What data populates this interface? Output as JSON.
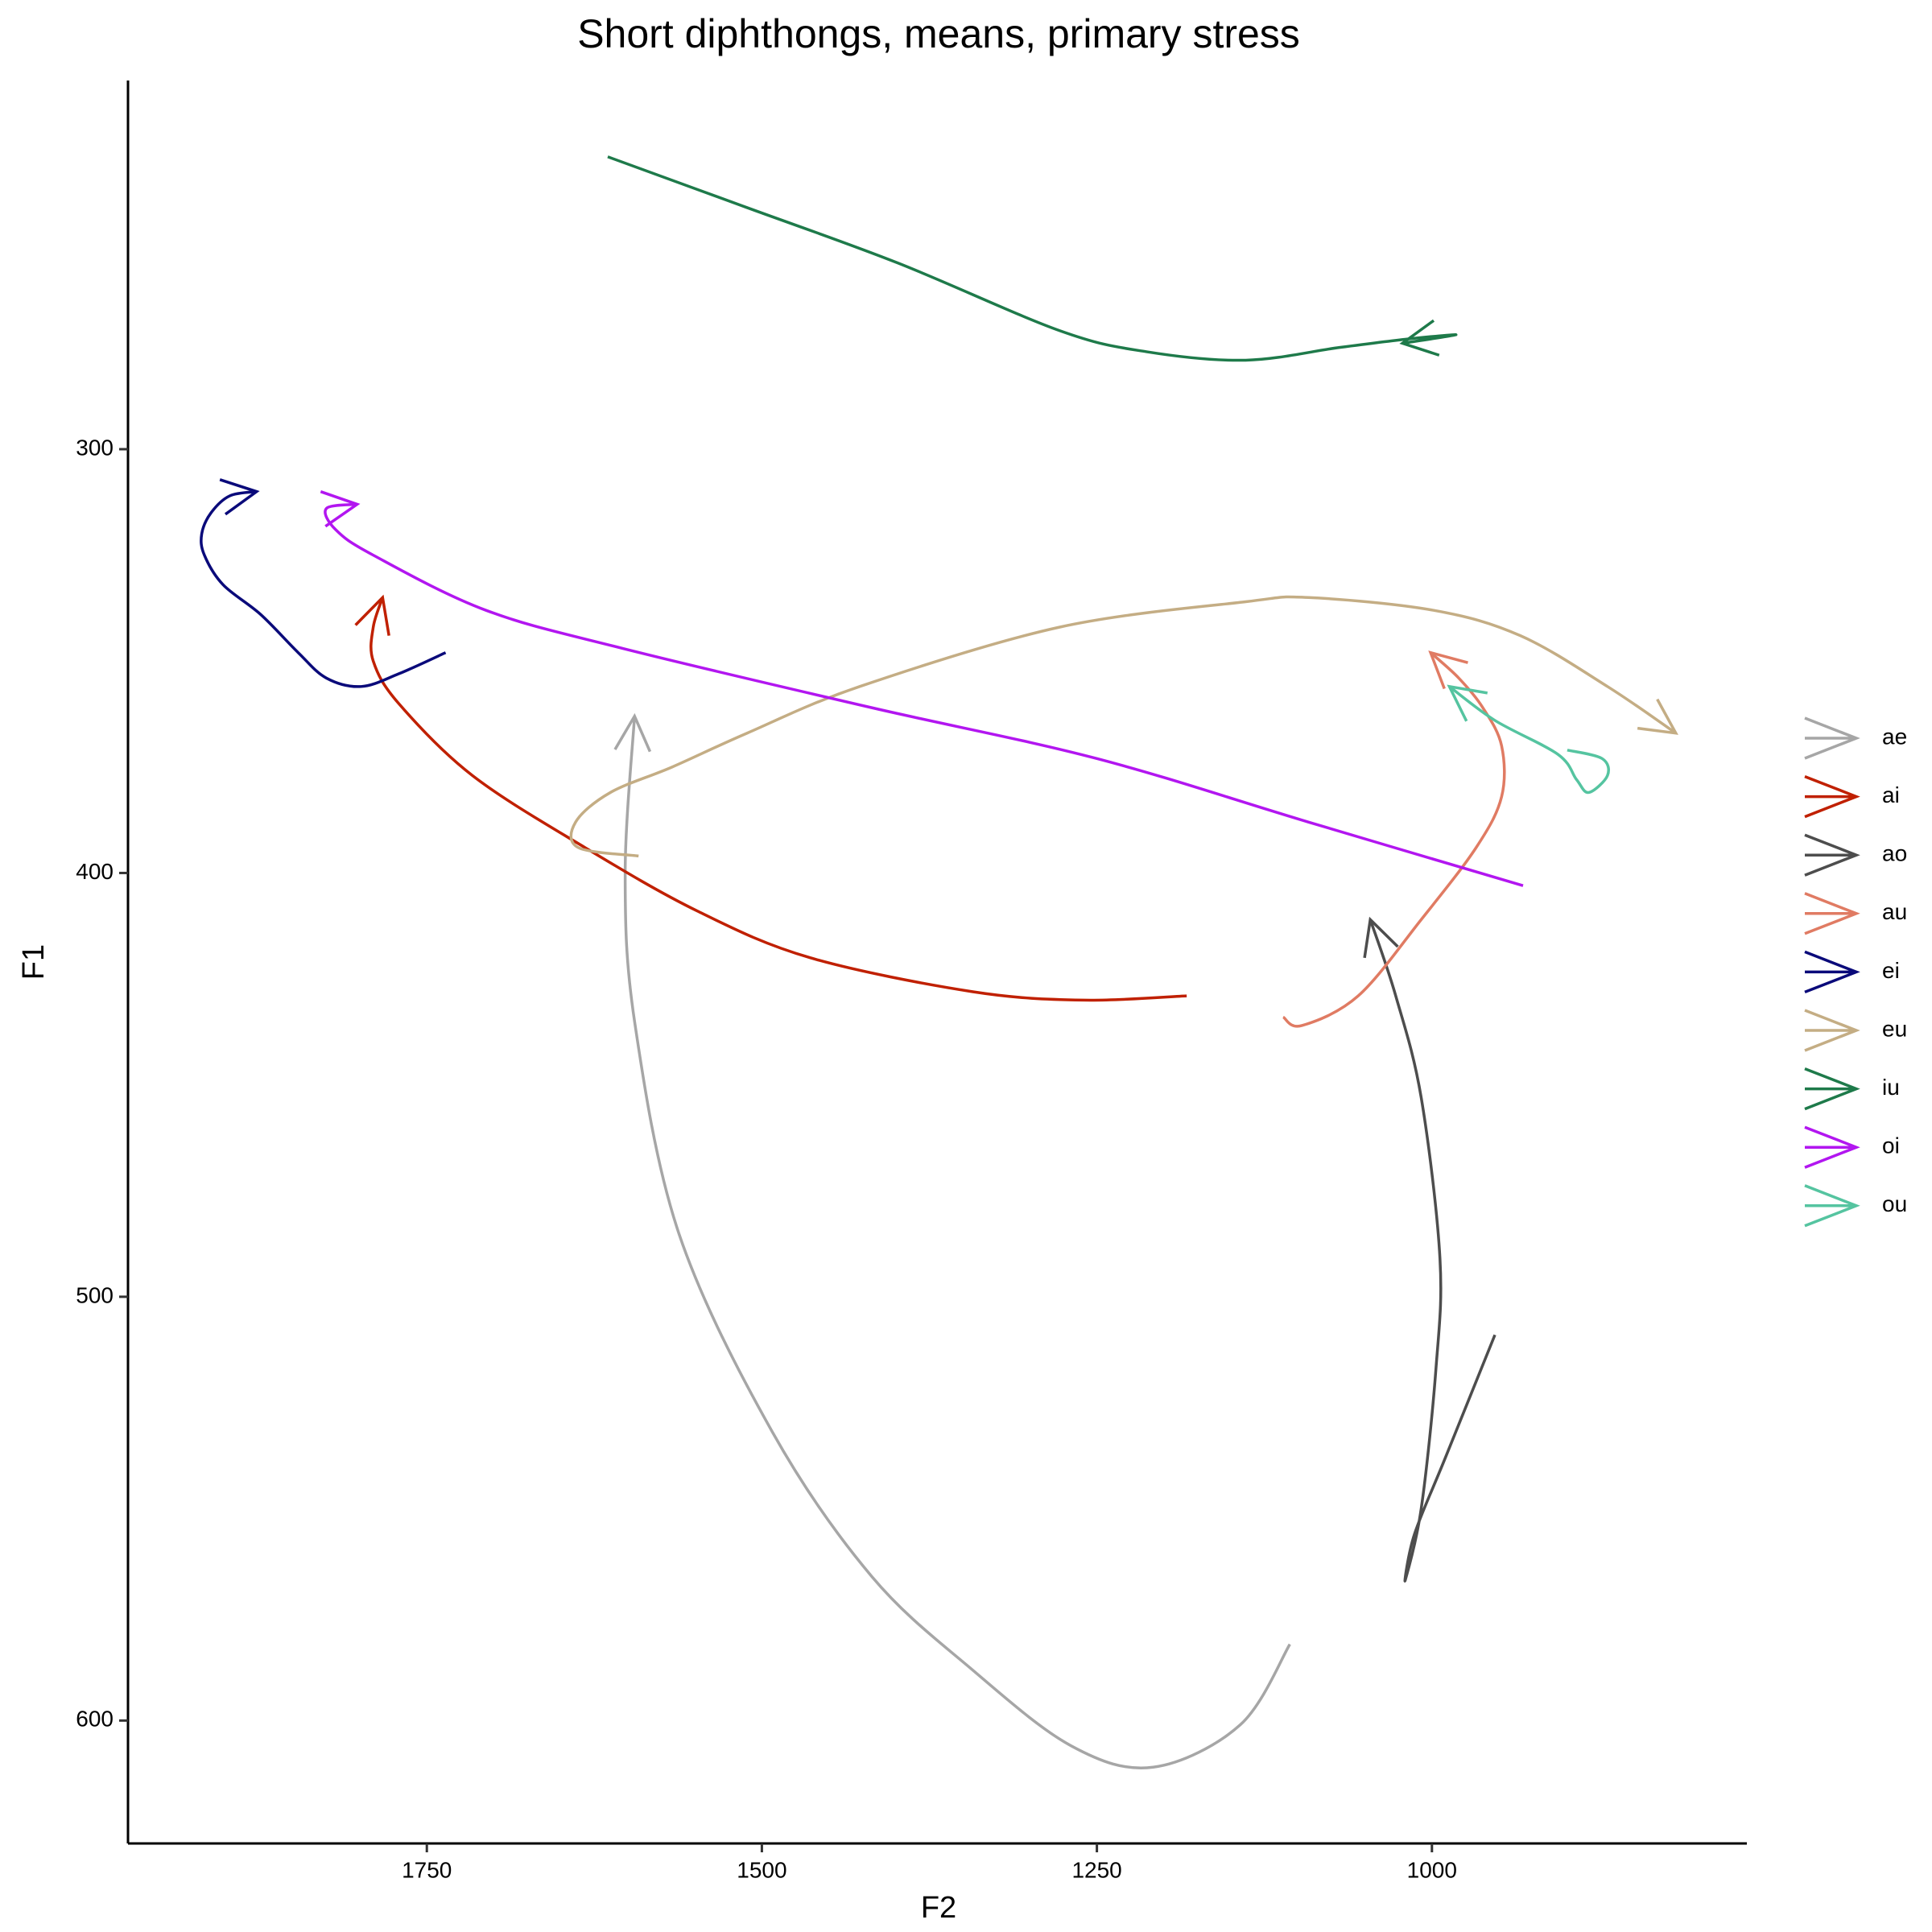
{
  "chart_data": {
    "type": "line",
    "title": "Short diphthongs, means, primary stress",
    "x_label": "F2",
    "y_label": "F1",
    "xlim": [
      1973,
      765
    ],
    "ylim": [
      629,
      213
    ],
    "xticks": [
      1750,
      1500,
      1250,
      1000
    ],
    "yticks": [
      300,
      400,
      500,
      600
    ],
    "grid": false,
    "legend": "right",
    "series": [
      {
        "name": "ae",
        "color": "#a6a6a6",
        "x": [
          1106,
          1143,
          1208,
          1269,
          1343,
          1418,
          1492,
          1562,
          1595,
          1602,
          1595
        ],
        "y": [
          582,
          601,
          611,
          606,
          588,
          566,
          532,
          485,
          435,
          400,
          363
        ]
      },
      {
        "name": "ai",
        "color": "#c02000",
        "x": [
          1183,
          1260,
          1343,
          1464,
          1548,
          1632,
          1716,
          1771,
          1790,
          1790,
          1783
        ],
        "y": [
          429,
          430,
          428,
          420,
          409,
          394,
          377,
          360,
          350,
          342,
          335
        ]
      },
      {
        "name": "ao",
        "color": "#4d4d4d",
        "x": [
          953,
          990,
          1013,
          1020,
          1008,
          997,
          994,
          1008,
          1027,
          1046
        ],
        "y": [
          509,
          538,
          556,
          567,
          550,
          517,
          491,
          453,
          429,
          411
        ]
      },
      {
        "name": "au",
        "color": "#e07b63",
        "x": [
          1111,
          1097,
          1055,
          1008,
          967,
          948,
          948,
          962,
          980,
          1001
        ],
        "y": [
          434,
          436,
          429,
          411,
          394,
          382,
          370,
          361,
          354,
          348
        ]
      },
      {
        "name": "ei",
        "color": "#0a0a7a",
        "x": [
          1736,
          1771,
          1799,
          1825,
          1846,
          1874,
          1902,
          1916,
          1918,
          1911,
          1897,
          1877
        ],
        "y": [
          348,
          353,
          356,
          354,
          348,
          339,
          332,
          325,
          320,
          315,
          311,
          310
        ]
      },
      {
        "name": "eu",
        "color": "#c4ad84",
        "x": [
          1592,
          1637,
          1639,
          1613,
          1567,
          1511,
          1427,
          1278,
          1139,
          1092,
          999,
          934,
          869,
          818
        ],
        "y": [
          396,
          394,
          388,
          381,
          375,
          367,
          356,
          342,
          336,
          335,
          338,
          344,
          356,
          367
        ]
      },
      {
        "name": "iu",
        "color": "#1e7a4a",
        "x": [
          1615,
          1511,
          1399,
          1278,
          1213,
          1139,
          1069,
          1018,
          982,
          1022
        ],
        "y": [
          231,
          243,
          256,
          272,
          277,
          279,
          276,
          274,
          273,
          275
        ]
      },
      {
        "name": "oi",
        "color": "#b216f0",
        "x": [
          932,
          1092,
          1250,
          1418,
          1604,
          1706,
          1790,
          1818,
          1825,
          1802
        ],
        "y": [
          403,
          388,
          373,
          361,
          347,
          338,
          325,
          319,
          314,
          313
        ]
      },
      {
        "name": "ou",
        "color": "#55c4a0",
        "x": [
          899,
          873,
          869,
          883,
          892,
          906,
          953,
          987
        ],
        "y": [
          371,
          373,
          377,
          381,
          378,
          372,
          364,
          356
        ]
      }
    ]
  }
}
